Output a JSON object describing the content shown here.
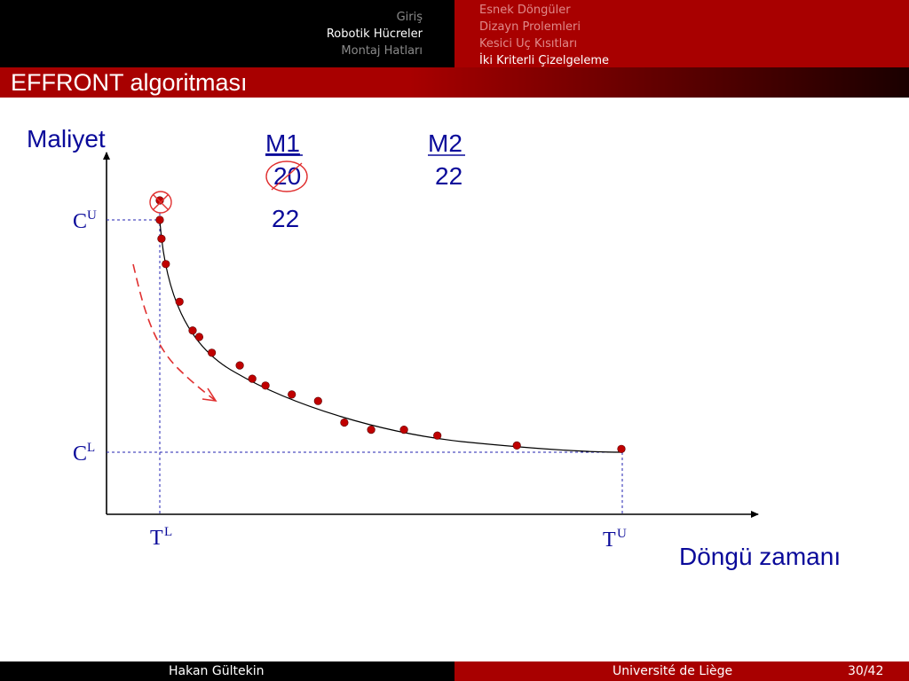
{
  "header": {
    "nav_left": [
      "Giriş",
      "Robotik Hücreler",
      "Montaj Hatları"
    ],
    "nav_left_active": 1,
    "nav_right": [
      "Esnek Döngüler",
      "Dizayn Prolemleri",
      "Kesici Uç Kısıtları",
      "İki Kriterli Çizelgeleme"
    ],
    "nav_right_active": 3
  },
  "slide": {
    "title": "EFFRONT algoritması"
  },
  "figure": {
    "y_axis_label": "Maliyet",
    "x_axis_label": "Döngü zamanı",
    "cu_main": "C",
    "cu_sup": "U",
    "cl_main": "C",
    "cl_sup": "L",
    "tl_main": "T",
    "tl_sup": "L",
    "tu_main": "T",
    "tu_sup": "U",
    "m1": "M1",
    "m2": "M2",
    "m1_value_old": "20",
    "m1_value_new": "22",
    "m2_value": "22"
  },
  "chart_data": {
    "type": "scatter",
    "x_range": [
      0,
      100
    ],
    "y_range": [
      0,
      100
    ],
    "curve": "tradeoff curve from (0, 86) to (84, 19), convex, decreasing",
    "points": [
      {
        "x": 0.0,
        "y": 91.7,
        "crossed": true
      },
      {
        "x": 0.0,
        "y": 86.0
      },
      {
        "x": 0.3,
        "y": 80.5
      },
      {
        "x": 1.1,
        "y": 73.1
      },
      {
        "x": 3.6,
        "y": 62.1
      },
      {
        "x": 6.0,
        "y": 53.7
      },
      {
        "x": 7.2,
        "y": 51.8
      },
      {
        "x": 9.5,
        "y": 47.2
      },
      {
        "x": 14.6,
        "y": 43.5
      },
      {
        "x": 16.9,
        "y": 39.6
      },
      {
        "x": 19.3,
        "y": 37.6
      },
      {
        "x": 24.1,
        "y": 35.0
      },
      {
        "x": 28.9,
        "y": 33.1
      },
      {
        "x": 33.7,
        "y": 26.8
      },
      {
        "x": 38.6,
        "y": 24.7
      },
      {
        "x": 44.6,
        "y": 24.7
      },
      {
        "x": 50.7,
        "y": 23.0
      },
      {
        "x": 65.2,
        "y": 20.1
      },
      {
        "x": 84.3,
        "y": 19.1
      }
    ],
    "reference_lines": {
      "CU": 86.0,
      "CL": 19.0,
      "TL": 0.0,
      "TU": 84.3
    },
    "colors": {
      "points": "#c00000",
      "reference": "#2020b0",
      "arrow": "#e03030"
    }
  }
}
